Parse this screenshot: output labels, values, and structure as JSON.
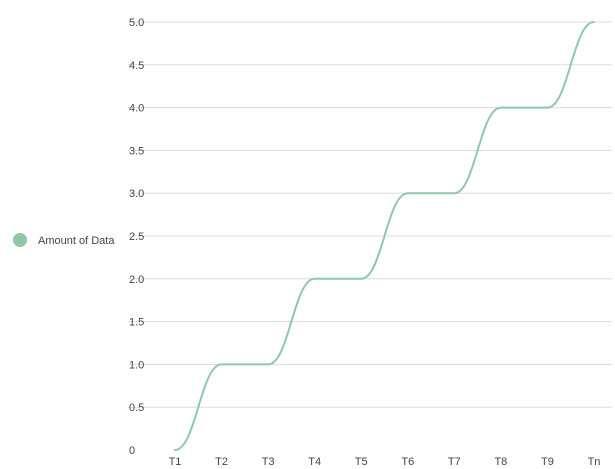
{
  "chart_data": {
    "type": "line",
    "title": "",
    "xlabel": "",
    "ylabel": "",
    "categories": [
      "T1",
      "T2",
      "T3",
      "T4",
      "T5",
      "T6",
      "T7",
      "T8",
      "T9",
      "Tn"
    ],
    "series": [
      {
        "name": "Amount of Data",
        "color": "#8fc9a8",
        "values": [
          0,
          1,
          1,
          2,
          2,
          3,
          3,
          4,
          4,
          5
        ]
      }
    ],
    "ylim": [
      0,
      5
    ],
    "yticks": [
      "0",
      "0.5",
      "1.0",
      "1.5",
      "2.0",
      "2.5",
      "3.0",
      "3.5",
      "4.0",
      "4.5",
      "5.0"
    ],
    "ytick_values": [
      0,
      0.5,
      1,
      1.5,
      2,
      2.5,
      3,
      3.5,
      4,
      4.5,
      5
    ],
    "grid": true,
    "legend_position": "left",
    "line_style": "smooth"
  }
}
